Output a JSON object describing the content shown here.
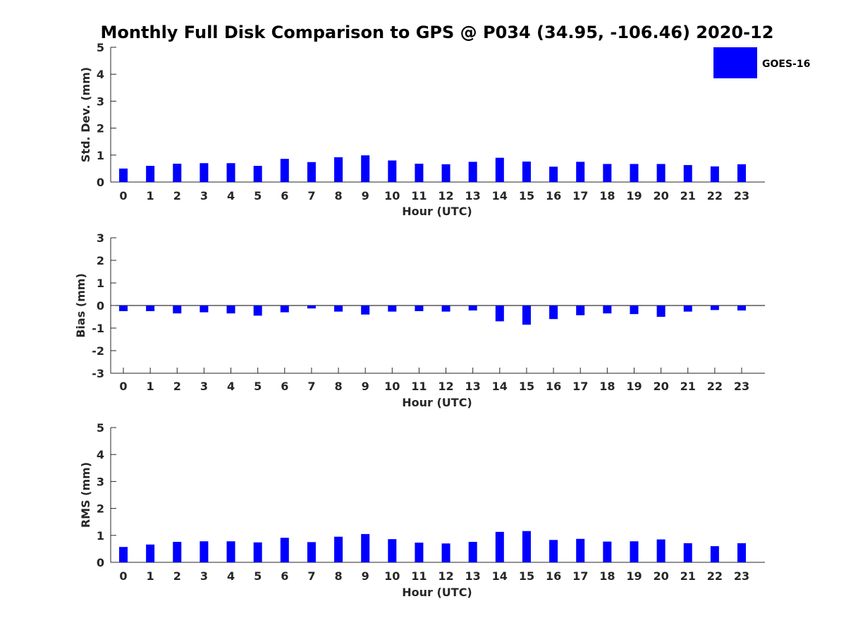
{
  "chart_data": [
    {
      "type": "bar",
      "title": "Monthly Full Disk Comparison to GPS @ P034 (34.95, -106.46) 2020-12",
      "xlabel": "Hour (UTC)",
      "ylabel": "Std. Dev. (mm)",
      "ylim": [
        0,
        5
      ],
      "yticks": [
        "0",
        "1",
        "2",
        "3",
        "4",
        "5"
      ],
      "categories": [
        "0",
        "1",
        "2",
        "3",
        "4",
        "5",
        "6",
        "7",
        "8",
        "9",
        "10",
        "11",
        "12",
        "13",
        "14",
        "15",
        "16",
        "17",
        "18",
        "19",
        "20",
        "21",
        "22",
        "23"
      ],
      "series": [
        {
          "name": "GOES-16",
          "color": "#0000ff",
          "values": [
            0.5,
            0.6,
            0.68,
            0.7,
            0.7,
            0.6,
            0.86,
            0.74,
            0.92,
            0.99,
            0.8,
            0.68,
            0.66,
            0.75,
            0.9,
            0.76,
            0.57,
            0.75,
            0.67,
            0.67,
            0.67,
            0.63,
            0.58,
            0.66
          ]
        }
      ],
      "legend": {
        "position": "top-right",
        "entries": [
          "GOES-16"
        ]
      }
    },
    {
      "type": "bar",
      "xlabel": "Hour (UTC)",
      "ylabel": "Bias (mm)",
      "ylim": [
        -3,
        3
      ],
      "yticks": [
        "-3",
        "-2",
        "-1",
        "0",
        "1",
        "2",
        "3"
      ],
      "zero_line": true,
      "categories": [
        "0",
        "1",
        "2",
        "3",
        "4",
        "5",
        "6",
        "7",
        "8",
        "9",
        "10",
        "11",
        "12",
        "13",
        "14",
        "15",
        "16",
        "17",
        "18",
        "19",
        "20",
        "21",
        "22",
        "23"
      ],
      "series": [
        {
          "name": "GOES-16",
          "color": "#0000ff",
          "values": [
            -0.25,
            -0.25,
            -0.35,
            -0.3,
            -0.35,
            -0.45,
            -0.3,
            -0.13,
            -0.27,
            -0.4,
            -0.27,
            -0.25,
            -0.27,
            -0.22,
            -0.7,
            -0.85,
            -0.6,
            -0.43,
            -0.35,
            -0.38,
            -0.5,
            -0.27,
            -0.2,
            -0.22
          ]
        }
      ]
    },
    {
      "type": "bar",
      "xlabel": "Hour (UTC)",
      "ylabel": "RMS (mm)",
      "ylim": [
        0,
        5
      ],
      "yticks": [
        "0",
        "1",
        "2",
        "3",
        "4",
        "5"
      ],
      "categories": [
        "0",
        "1",
        "2",
        "3",
        "4",
        "5",
        "6",
        "7",
        "8",
        "9",
        "10",
        "11",
        "12",
        "13",
        "14",
        "15",
        "16",
        "17",
        "18",
        "19",
        "20",
        "21",
        "22",
        "23"
      ],
      "series": [
        {
          "name": "GOES-16",
          "color": "#0000ff",
          "values": [
            0.57,
            0.66,
            0.76,
            0.78,
            0.78,
            0.74,
            0.91,
            0.75,
            0.95,
            1.05,
            0.86,
            0.73,
            0.7,
            0.76,
            1.13,
            1.16,
            0.83,
            0.87,
            0.77,
            0.78,
            0.85,
            0.71,
            0.6,
            0.71
          ]
        }
      ]
    }
  ]
}
